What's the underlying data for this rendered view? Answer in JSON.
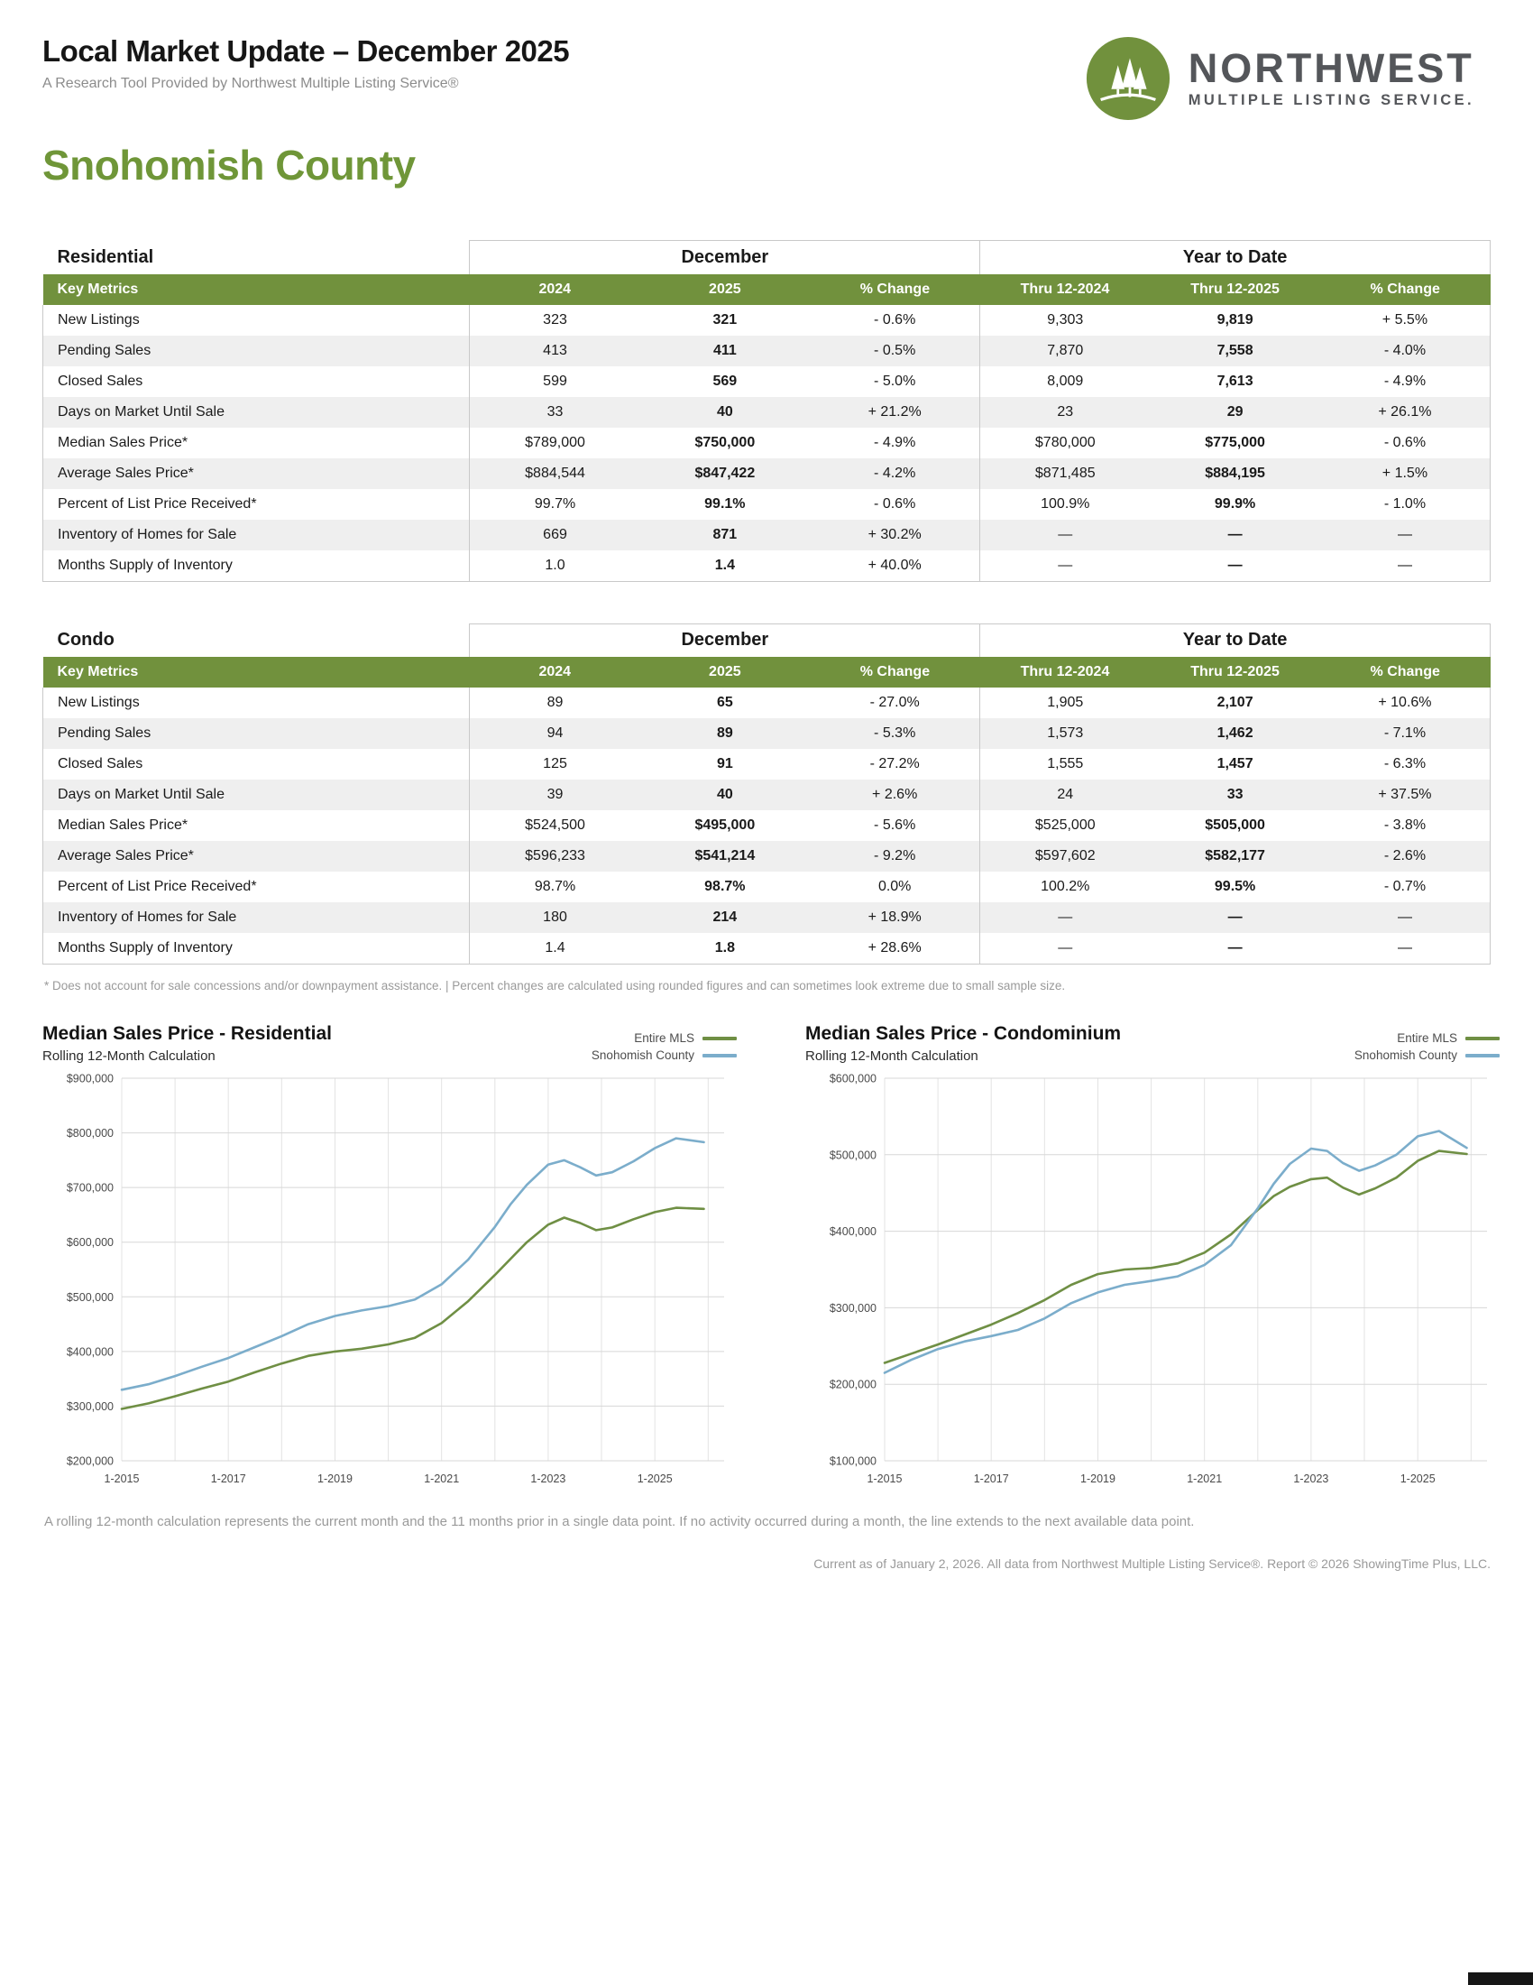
{
  "header": {
    "title": "Local Market Update – December 2025",
    "subtitle": "A Research Tool Provided by Northwest Multiple Listing Service®",
    "logo_line1": "NORTHWEST",
    "logo_line2": "MULTIPLE LISTING SERVICE."
  },
  "page_title": "Snohomish County",
  "colors": {
    "accent_green": "#71913d",
    "title_green": "#6f9638",
    "row_alt": "#efefef",
    "table_border": "#c9c9c9",
    "chart_green": "#6f8f44",
    "chart_blue": "#7badcb",
    "logo_gray": "#54565a"
  },
  "tables": [
    {
      "name": "Residential",
      "group_headers": [
        "December",
        "Year to Date"
      ],
      "columns": [
        "Key Metrics",
        "2024",
        "2025",
        "% Change",
        "Thru 12-2024",
        "Thru 12-2025",
        "% Change"
      ],
      "rows": [
        [
          "New Listings",
          "323",
          "321",
          "- 0.6%",
          "9,303",
          "9,819",
          "+ 5.5%"
        ],
        [
          "Pending Sales",
          "413",
          "411",
          "- 0.5%",
          "7,870",
          "7,558",
          "- 4.0%"
        ],
        [
          "Closed Sales",
          "599",
          "569",
          "- 5.0%",
          "8,009",
          "7,613",
          "- 4.9%"
        ],
        [
          "Days on Market Until Sale",
          "33",
          "40",
          "+ 21.2%",
          "23",
          "29",
          "+ 26.1%"
        ],
        [
          "Median Sales Price*",
          "$789,000",
          "$750,000",
          "- 4.9%",
          "$780,000",
          "$775,000",
          "- 0.6%"
        ],
        [
          "Average Sales Price*",
          "$884,544",
          "$847,422",
          "- 4.2%",
          "$871,485",
          "$884,195",
          "+ 1.5%"
        ],
        [
          "Percent of List Price Received*",
          "99.7%",
          "99.1%",
          "- 0.6%",
          "100.9%",
          "99.9%",
          "- 1.0%"
        ],
        [
          "Inventory of Homes for Sale",
          "669",
          "871",
          "+ 30.2%",
          "—",
          "—",
          "—"
        ],
        [
          "Months Supply of Inventory",
          "1.0",
          "1.4",
          "+ 40.0%",
          "—",
          "—",
          "—"
        ]
      ]
    },
    {
      "name": "Condo",
      "group_headers": [
        "December",
        "Year to Date"
      ],
      "columns": [
        "Key Metrics",
        "2024",
        "2025",
        "% Change",
        "Thru 12-2024",
        "Thru 12-2025",
        "% Change"
      ],
      "rows": [
        [
          "New Listings",
          "89",
          "65",
          "- 27.0%",
          "1,905",
          "2,107",
          "+ 10.6%"
        ],
        [
          "Pending Sales",
          "94",
          "89",
          "- 5.3%",
          "1,573",
          "1,462",
          "- 7.1%"
        ],
        [
          "Closed Sales",
          "125",
          "91",
          "- 27.2%",
          "1,555",
          "1,457",
          "- 6.3%"
        ],
        [
          "Days on Market Until Sale",
          "39",
          "40",
          "+ 2.6%",
          "24",
          "33",
          "+ 37.5%"
        ],
        [
          "Median Sales Price*",
          "$524,500",
          "$495,000",
          "- 5.6%",
          "$525,000",
          "$505,000",
          "- 3.8%"
        ],
        [
          "Average Sales Price*",
          "$596,233",
          "$541,214",
          "- 9.2%",
          "$597,602",
          "$582,177",
          "- 2.6%"
        ],
        [
          "Percent of List Price Received*",
          "98.7%",
          "98.7%",
          "0.0%",
          "100.2%",
          "99.5%",
          "- 0.7%"
        ],
        [
          "Inventory of Homes for Sale",
          "180",
          "214",
          "+ 18.9%",
          "—",
          "—",
          "—"
        ],
        [
          "Months Supply of Inventory",
          "1.4",
          "1.8",
          "+ 28.6%",
          "—",
          "—",
          "—"
        ]
      ]
    }
  ],
  "table_footnote": "* Does not account for sale concessions and/or downpayment assistance. | Percent changes are calculated using rounded figures and can sometimes look extreme due to small sample size.",
  "chart_footnote": "A rolling 12-month calculation represents the current month and the 11 months prior in a single data point. If no activity occurred during a month, the line extends to the next available data point.",
  "footer": "Current as of January 2, 2026. All data from Northwest Multiple Listing Service®. Report © 2026 ShowingTime Plus, LLC.",
  "chart_data": [
    {
      "type": "line",
      "title": "Median Sales Price - Residential",
      "subtitle": "Rolling 12-Month Calculation",
      "legend_position": "top-right",
      "grid": true,
      "ylim": [
        200000,
        900000
      ],
      "ytick_step": 100000,
      "xlim": [
        2015,
        2026.3
      ],
      "xticks": [
        {
          "x": 2015,
          "label": "1-2015"
        },
        {
          "x": 2017,
          "label": "1-2017"
        },
        {
          "x": 2019,
          "label": "1-2019"
        },
        {
          "x": 2021,
          "label": "1-2021"
        },
        {
          "x": 2023,
          "label": "1-2023"
        },
        {
          "x": 2025,
          "label": "1-2025"
        }
      ],
      "series": [
        {
          "name": "Entire MLS",
          "color": "#6f8f44",
          "x": [
            2015.0,
            2015.5,
            2016.0,
            2016.5,
            2017.0,
            2017.5,
            2018.0,
            2018.5,
            2019.0,
            2019.5,
            2020.0,
            2020.5,
            2021.0,
            2021.5,
            2022.0,
            2022.3,
            2022.6,
            2023.0,
            2023.3,
            2023.6,
            2023.9,
            2024.2,
            2024.6,
            2025.0,
            2025.4,
            2025.92
          ],
          "y": [
            295000,
            305000,
            318000,
            332000,
            345000,
            362000,
            378000,
            392000,
            400000,
            405000,
            413000,
            425000,
            452000,
            492000,
            540000,
            570000,
            600000,
            632000,
            645000,
            635000,
            622000,
            627000,
            642000,
            655000,
            663000,
            661000
          ]
        },
        {
          "name": "Snohomish County",
          "color": "#7badcb",
          "x": [
            2015.0,
            2015.5,
            2016.0,
            2016.5,
            2017.0,
            2017.5,
            2018.0,
            2018.5,
            2019.0,
            2019.5,
            2020.0,
            2020.5,
            2021.0,
            2021.5,
            2022.0,
            2022.3,
            2022.6,
            2023.0,
            2023.3,
            2023.6,
            2023.9,
            2024.2,
            2024.6,
            2025.0,
            2025.4,
            2025.92
          ],
          "y": [
            330000,
            340000,
            355000,
            372000,
            388000,
            408000,
            428000,
            450000,
            465000,
            475000,
            483000,
            495000,
            523000,
            568000,
            628000,
            670000,
            705000,
            742000,
            750000,
            737000,
            722000,
            728000,
            748000,
            772000,
            790000,
            783000
          ]
        }
      ]
    },
    {
      "type": "line",
      "title": "Median Sales Price - Condominium",
      "subtitle": "Rolling 12-Month Calculation",
      "legend_position": "top-right",
      "grid": true,
      "ylim": [
        100000,
        600000
      ],
      "ytick_step": 100000,
      "xlim": [
        2015,
        2026.3
      ],
      "xticks": [
        {
          "x": 2015,
          "label": "1-2015"
        },
        {
          "x": 2017,
          "label": "1-2017"
        },
        {
          "x": 2019,
          "label": "1-2019"
        },
        {
          "x": 2021,
          "label": "1-2021"
        },
        {
          "x": 2023,
          "label": "1-2023"
        },
        {
          "x": 2025,
          "label": "1-2025"
        }
      ],
      "series": [
        {
          "name": "Entire MLS",
          "color": "#6f8f44",
          "x": [
            2015.0,
            2015.5,
            2016.0,
            2016.5,
            2017.0,
            2017.5,
            2018.0,
            2018.5,
            2019.0,
            2019.5,
            2020.0,
            2020.5,
            2021.0,
            2021.5,
            2022.0,
            2022.3,
            2022.6,
            2023.0,
            2023.3,
            2023.6,
            2023.9,
            2024.2,
            2024.6,
            2025.0,
            2025.4,
            2025.92
          ],
          "y": [
            228000,
            240000,
            252000,
            265000,
            278000,
            293000,
            310000,
            330000,
            344000,
            350000,
            352000,
            358000,
            372000,
            396000,
            428000,
            446000,
            458000,
            468000,
            470000,
            457000,
            448000,
            456000,
            470000,
            492000,
            505000,
            501000
          ]
        },
        {
          "name": "Snohomish County",
          "color": "#7badcb",
          "x": [
            2015.0,
            2015.5,
            2016.0,
            2016.5,
            2017.0,
            2017.5,
            2018.0,
            2018.5,
            2019.0,
            2019.5,
            2020.0,
            2020.5,
            2021.0,
            2021.5,
            2022.0,
            2022.3,
            2022.6,
            2023.0,
            2023.3,
            2023.6,
            2023.9,
            2024.2,
            2024.6,
            2025.0,
            2025.4,
            2025.92
          ],
          "y": [
            215000,
            232000,
            246000,
            256000,
            263000,
            271000,
            286000,
            306000,
            320000,
            330000,
            335000,
            341000,
            356000,
            382000,
            430000,
            462000,
            488000,
            508000,
            505000,
            489000,
            479000,
            486000,
            500000,
            524000,
            531000,
            509000
          ]
        }
      ]
    }
  ]
}
